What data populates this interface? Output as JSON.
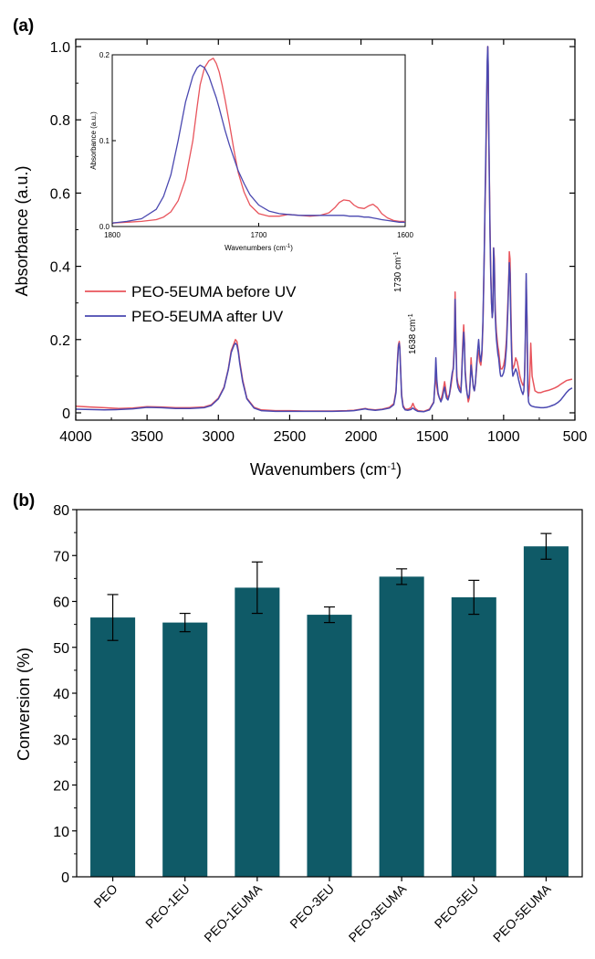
{
  "panels": {
    "a": {
      "label": "(a)"
    },
    "b": {
      "label": "(b)"
    }
  },
  "colors": {
    "before_uv": "#e8545c",
    "after_uv": "#4a48b0",
    "bar": "#0f5a67",
    "axis": "#000000"
  },
  "chart_data": [
    {
      "type": "line",
      "panel": "(a)",
      "xlabel": "Wavenumbers (cm",
      "xlabel_sup": "-1",
      "xlabel_close": ")",
      "ylabel": "Absorbance (a.u.)",
      "xlim": [
        4000,
        500
      ],
      "ylim": [
        -0.02,
        1.02
      ],
      "x_reversed": true,
      "xticks": [
        4000,
        3500,
        3000,
        2500,
        2000,
        1500,
        1000,
        500
      ],
      "xtick_labels": [
        "4000",
        "3500",
        "3000",
        "2500",
        "2000",
        "1500",
        "1000",
        "500"
      ],
      "yticks": [
        0,
        0.2,
        0.4,
        0.6,
        0.8,
        1.0
      ],
      "ytick_labels": [
        "0",
        "0.2",
        "0.4",
        "0.6",
        "0.8",
        "1.0"
      ],
      "legend": {
        "placement": "middle-left"
      },
      "annotations": [
        {
          "text": "1730 cm",
          "sup": "-1",
          "x": 1730
        },
        {
          "text": "1638 cm",
          "sup": "-1",
          "x": 1638
        }
      ],
      "series": [
        {
          "name": "PEO-5EUMA before UV",
          "x": [
            4000,
            3900,
            3800,
            3700,
            3600,
            3500,
            3400,
            3300,
            3200,
            3100,
            3050,
            3000,
            2960,
            2930,
            2910,
            2890,
            2880,
            2870,
            2860,
            2850,
            2830,
            2800,
            2750,
            2700,
            2600,
            2500,
            2400,
            2300,
            2200,
            2100,
            2050,
            2000,
            1970,
            1950,
            1900,
            1850,
            1800,
            1770,
            1755,
            1745,
            1738,
            1732,
            1728,
            1722,
            1715,
            1705,
            1690,
            1670,
            1650,
            1640,
            1636,
            1630,
            1620,
            1600,
            1560,
            1520,
            1490,
            1480,
            1475,
            1468,
            1460,
            1450,
            1440,
            1430,
            1420,
            1414,
            1408,
            1400,
            1390,
            1380,
            1370,
            1360,
            1352,
            1345,
            1340,
            1335,
            1328,
            1320,
            1310,
            1300,
            1295,
            1290,
            1285,
            1280,
            1275,
            1270,
            1262,
            1255,
            1248,
            1240,
            1235,
            1228,
            1220,
            1212,
            1205,
            1198,
            1190,
            1182,
            1175,
            1168,
            1160,
            1152,
            1145,
            1140,
            1135,
            1130,
            1125,
            1120,
            1115,
            1111,
            1108,
            1105,
            1100,
            1095,
            1090,
            1085,
            1080,
            1075,
            1070,
            1065,
            1060,
            1055,
            1050,
            1045,
            1040,
            1035,
            1030,
            1025,
            1020,
            1010,
            1000,
            990,
            980,
            970,
            963,
            960,
            955,
            950,
            945,
            940,
            935,
            925,
            915,
            905,
            895,
            885,
            875,
            865,
            858,
            853,
            848,
            842,
            836,
            830,
            825,
            820,
            815,
            810,
            800,
            780,
            760,
            740,
            720,
            700,
            680,
            660,
            640,
            620,
            600,
            580,
            560,
            540,
            520
          ],
          "y": [
            0.018,
            0.016,
            0.014,
            0.012,
            0.013,
            0.017,
            0.016,
            0.014,
            0.014,
            0.016,
            0.022,
            0.04,
            0.07,
            0.12,
            0.17,
            0.19,
            0.2,
            0.195,
            0.17,
            0.14,
            0.09,
            0.04,
            0.015,
            0.008,
            0.006,
            0.006,
            0.005,
            0.005,
            0.005,
            0.006,
            0.007,
            0.01,
            0.012,
            0.01,
            0.008,
            0.01,
            0.015,
            0.025,
            0.06,
            0.14,
            0.185,
            0.195,
            0.18,
            0.12,
            0.05,
            0.02,
            0.01,
            0.01,
            0.014,
            0.022,
            0.026,
            0.02,
            0.012,
            0.006,
            0.004,
            0.01,
            0.03,
            0.08,
            0.1,
            0.07,
            0.05,
            0.04,
            0.035,
            0.05,
            0.07,
            0.085,
            0.07,
            0.05,
            0.04,
            0.05,
            0.07,
            0.1,
            0.13,
            0.2,
            0.33,
            0.22,
            0.1,
            0.08,
            0.07,
            0.06,
            0.1,
            0.15,
            0.2,
            0.24,
            0.2,
            0.12,
            0.08,
            0.05,
            0.03,
            0.04,
            0.08,
            0.15,
            0.1,
            0.07,
            0.06,
            0.08,
            0.12,
            0.16,
            0.17,
            0.14,
            0.13,
            0.16,
            0.24,
            0.34,
            0.45,
            0.56,
            0.66,
            0.8,
            0.93,
            1.0,
            0.93,
            0.8,
            0.65,
            0.5,
            0.38,
            0.3,
            0.26,
            0.28,
            0.45,
            0.42,
            0.3,
            0.25,
            0.22,
            0.2,
            0.18,
            0.17,
            0.15,
            0.13,
            0.12,
            0.12,
            0.13,
            0.15,
            0.2,
            0.3,
            0.38,
            0.44,
            0.42,
            0.3,
            0.2,
            0.14,
            0.12,
            0.13,
            0.15,
            0.14,
            0.12,
            0.1,
            0.085,
            0.075,
            0.08,
            0.1,
            0.18,
            0.36,
            0.25,
            0.08,
            0.045,
            0.065,
            0.12,
            0.19,
            0.1,
            0.06,
            0.055,
            0.055,
            0.058,
            0.06,
            0.062,
            0.065,
            0.068,
            0.072,
            0.078,
            0.083,
            0.088,
            0.09,
            0.092
          ]
        },
        {
          "name": "PEO-5EUMA after UV",
          "x": [
            4000,
            3900,
            3800,
            3700,
            3600,
            3500,
            3400,
            3300,
            3200,
            3100,
            3050,
            3000,
            2960,
            2930,
            2910,
            2890,
            2880,
            2870,
            2860,
            2850,
            2830,
            2800,
            2750,
            2700,
            2600,
            2500,
            2400,
            2300,
            2200,
            2100,
            2050,
            2000,
            1970,
            1950,
            1900,
            1850,
            1800,
            1770,
            1755,
            1745,
            1738,
            1732,
            1728,
            1722,
            1715,
            1705,
            1690,
            1670,
            1650,
            1640,
            1636,
            1630,
            1620,
            1600,
            1560,
            1520,
            1490,
            1480,
            1475,
            1468,
            1460,
            1450,
            1440,
            1430,
            1420,
            1414,
            1408,
            1400,
            1390,
            1380,
            1370,
            1360,
            1352,
            1345,
            1340,
            1335,
            1328,
            1320,
            1310,
            1300,
            1295,
            1290,
            1285,
            1280,
            1275,
            1270,
            1262,
            1255,
            1248,
            1240,
            1235,
            1228,
            1220,
            1212,
            1205,
            1198,
            1190,
            1182,
            1175,
            1168,
            1160,
            1152,
            1145,
            1140,
            1135,
            1130,
            1125,
            1120,
            1115,
            1111,
            1108,
            1105,
            1100,
            1095,
            1090,
            1085,
            1080,
            1075,
            1070,
            1065,
            1060,
            1055,
            1050,
            1045,
            1040,
            1035,
            1030,
            1025,
            1020,
            1010,
            1000,
            990,
            980,
            970,
            963,
            960,
            955,
            950,
            945,
            940,
            935,
            925,
            915,
            905,
            895,
            885,
            875,
            865,
            858,
            853,
            848,
            842,
            836,
            830,
            825,
            820,
            815,
            810,
            800,
            780,
            760,
            740,
            720,
            700,
            680,
            660,
            640,
            620,
            600,
            580,
            560,
            540,
            520
          ],
          "y": [
            0.01,
            0.009,
            0.008,
            0.009,
            0.011,
            0.015,
            0.014,
            0.012,
            0.012,
            0.014,
            0.02,
            0.038,
            0.068,
            0.118,
            0.165,
            0.185,
            0.19,
            0.185,
            0.165,
            0.135,
            0.085,
            0.038,
            0.013,
            0.006,
            0.004,
            0.004,
            0.004,
            0.004,
            0.004,
            0.005,
            0.006,
            0.009,
            0.011,
            0.009,
            0.007,
            0.009,
            0.013,
            0.022,
            0.055,
            0.13,
            0.178,
            0.19,
            0.175,
            0.115,
            0.045,
            0.016,
            0.008,
            0.007,
            0.009,
            0.012,
            0.013,
            0.011,
            0.008,
            0.004,
            0.003,
            0.008,
            0.028,
            0.09,
            0.15,
            0.09,
            0.055,
            0.04,
            0.03,
            0.04,
            0.06,
            0.07,
            0.055,
            0.04,
            0.035,
            0.05,
            0.08,
            0.11,
            0.12,
            0.18,
            0.31,
            0.2,
            0.09,
            0.07,
            0.06,
            0.055,
            0.09,
            0.14,
            0.18,
            0.22,
            0.19,
            0.11,
            0.07,
            0.05,
            0.04,
            0.05,
            0.08,
            0.13,
            0.1,
            0.07,
            0.06,
            0.08,
            0.13,
            0.17,
            0.2,
            0.16,
            0.14,
            0.17,
            0.25,
            0.35,
            0.46,
            0.58,
            0.7,
            0.84,
            0.96,
            1.0,
            0.95,
            0.82,
            0.64,
            0.48,
            0.37,
            0.3,
            0.26,
            0.28,
            0.45,
            0.4,
            0.28,
            0.23,
            0.2,
            0.18,
            0.16,
            0.15,
            0.13,
            0.11,
            0.1,
            0.1,
            0.11,
            0.13,
            0.18,
            0.28,
            0.37,
            0.41,
            0.38,
            0.26,
            0.17,
            0.12,
            0.1,
            0.11,
            0.12,
            0.11,
            0.09,
            0.075,
            0.06,
            0.05,
            0.06,
            0.1,
            0.2,
            0.38,
            0.25,
            0.06,
            0.03,
            0.025,
            0.022,
            0.02,
            0.018,
            0.016,
            0.015,
            0.014,
            0.014,
            0.015,
            0.017,
            0.02,
            0.023,
            0.028,
            0.035,
            0.045,
            0.055,
            0.063,
            0.068
          ]
        }
      ],
      "inset": {
        "type": "line",
        "xlabel": "Wavenumbers (cm",
        "xlabel_sup": "-1",
        "xlabel_close": ")",
        "ylabel": "Absorbance (a.u.)",
        "xlim": [
          1800,
          1600
        ],
        "ylim": [
          0,
          0.2
        ],
        "x_reversed": true,
        "xticks": [
          1800,
          1700,
          1600
        ],
        "xtick_labels": [
          "1800",
          "1700",
          "1600"
        ],
        "yticks": [
          0,
          0.1,
          0.2
        ],
        "ytick_labels": [
          "0.0",
          "0.1",
          "0.2"
        ],
        "series": [
          {
            "name": "PEO-5EUMA before UV",
            "x": [
              1800,
              1790,
              1780,
              1770,
              1765,
              1760,
              1755,
              1750,
              1745,
              1742,
              1740,
              1737,
              1734,
              1731,
              1729,
              1727,
              1725,
              1723,
              1720,
              1717,
              1714,
              1710,
              1706,
              1700,
              1693,
              1686,
              1680,
              1672,
              1665,
              1658,
              1652,
              1648,
              1645,
              1642,
              1638,
              1635,
              1632,
              1628,
              1625,
              1622,
              1619,
              1616,
              1612,
              1608,
              1604,
              1600
            ],
            "y": [
              0.004,
              0.005,
              0.006,
              0.008,
              0.011,
              0.017,
              0.03,
              0.055,
              0.1,
              0.14,
              0.165,
              0.185,
              0.193,
              0.196,
              0.19,
              0.18,
              0.165,
              0.148,
              0.12,
              0.09,
              0.063,
              0.04,
              0.025,
              0.015,
              0.012,
              0.012,
              0.014,
              0.013,
              0.012,
              0.013,
              0.016,
              0.022,
              0.028,
              0.031,
              0.03,
              0.025,
              0.022,
              0.021,
              0.024,
              0.026,
              0.022,
              0.015,
              0.01,
              0.007,
              0.006,
              0.006
            ]
          },
          {
            "name": "PEO-5EUMA after UV",
            "x": [
              1800,
              1790,
              1780,
              1770,
              1765,
              1760,
              1755,
              1750,
              1745,
              1742,
              1740,
              1737,
              1734,
              1731,
              1729,
              1727,
              1725,
              1723,
              1720,
              1717,
              1714,
              1710,
              1706,
              1700,
              1693,
              1686,
              1680,
              1672,
              1665,
              1658,
              1652,
              1648,
              1645,
              1642,
              1638,
              1635,
              1632,
              1628,
              1625,
              1622,
              1619,
              1616,
              1612,
              1608,
              1604,
              1600
            ],
            "y": [
              0.004,
              0.006,
              0.009,
              0.02,
              0.035,
              0.06,
              0.1,
              0.145,
              0.175,
              0.185,
              0.188,
              0.185,
              0.175,
              0.16,
              0.15,
              0.138,
              0.125,
              0.112,
              0.095,
              0.08,
              0.065,
              0.05,
              0.037,
              0.025,
              0.018,
              0.015,
              0.014,
              0.013,
              0.013,
              0.013,
              0.013,
              0.013,
              0.013,
              0.013,
              0.012,
              0.012,
              0.012,
              0.011,
              0.011,
              0.01,
              0.009,
              0.008,
              0.007,
              0.006,
              0.005,
              0.005
            ]
          }
        ]
      }
    },
    {
      "type": "bar",
      "panel": "(b)",
      "xlabel": "",
      "ylabel": "Conversion (%)",
      "ylim": [
        0,
        80
      ],
      "yticks": [
        0,
        10,
        20,
        30,
        40,
        50,
        60,
        70,
        80
      ],
      "ytick_labels": [
        "0",
        "10",
        "20",
        "30",
        "40",
        "50",
        "60",
        "70",
        "80"
      ],
      "categories": [
        "PEO",
        "PEO-1EU",
        "PEO-1EUMA",
        "PEO-3EU",
        "PEO-3EUMA",
        "PEO-5EU",
        "PEO-5EUMA"
      ],
      "values": [
        56.5,
        55.4,
        63.0,
        57.1,
        65.4,
        60.9,
        72.0
      ],
      "errors": [
        5.0,
        2.0,
        5.6,
        1.7,
        1.7,
        3.7,
        2.8
      ]
    }
  ]
}
